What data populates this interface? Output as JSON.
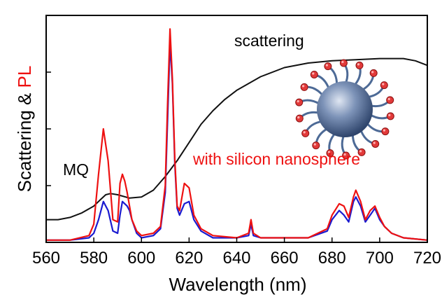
{
  "chart_data": {
    "type": "line",
    "xlabel": "Wavelength (nm)",
    "ylabel_parts": [
      "Scattering & ",
      "PL"
    ],
    "xlim": [
      560,
      720
    ],
    "ylim": [
      0,
      1
    ],
    "x_ticks": [
      560,
      580,
      600,
      620,
      640,
      660,
      680,
      700,
      720
    ],
    "y_ticks": [
      0.25,
      0.5,
      0.75,
      1.0
    ],
    "grid": false,
    "colors": {
      "scattering": "#111111",
      "pl_with": "#ee1111",
      "pl_without": "#1a1ad0",
      "ylabel_pl": "#ee1111"
    },
    "annotations": {
      "scattering": "scattering",
      "mq": "MQ",
      "with": "with silicon nanosphere"
    },
    "series": [
      {
        "key": "scattering",
        "x": [
          560,
          565,
          570,
          575,
          580,
          583,
          585,
          587,
          590,
          595,
          600,
          605,
          610,
          615,
          620,
          625,
          630,
          635,
          640,
          650,
          660,
          670,
          680,
          690,
          700,
          710,
          715,
          720
        ],
        "values": [
          0.1,
          0.1,
          0.11,
          0.13,
          0.16,
          0.19,
          0.21,
          0.215,
          0.21,
          0.195,
          0.2,
          0.23,
          0.29,
          0.36,
          0.44,
          0.52,
          0.58,
          0.63,
          0.67,
          0.73,
          0.77,
          0.79,
          0.8,
          0.805,
          0.81,
          0.81,
          0.8,
          0.78
        ]
      },
      {
        "key": "pl_without",
        "x": [
          560,
          570,
          578,
          580,
          582,
          584,
          586,
          588,
          590,
          591,
          592,
          593,
          594,
          595,
          596,
          598,
          600,
          605,
          608,
          610,
          611,
          612,
          613,
          614,
          615,
          616,
          618,
          620,
          622,
          625,
          630,
          640,
          645,
          646,
          647,
          650,
          660,
          670,
          678,
          680,
          683,
          685,
          687,
          689,
          690,
          692,
          694,
          696,
          698,
          700,
          702,
          705,
          710,
          720
        ],
        "values": [
          0.01,
          0.01,
          0.02,
          0.04,
          0.1,
          0.18,
          0.14,
          0.05,
          0.04,
          0.12,
          0.18,
          0.17,
          0.16,
          0.14,
          0.1,
          0.04,
          0.02,
          0.03,
          0.06,
          0.22,
          0.55,
          0.88,
          0.7,
          0.35,
          0.15,
          0.12,
          0.17,
          0.18,
          0.1,
          0.05,
          0.02,
          0.02,
          0.03,
          0.08,
          0.03,
          0.02,
          0.02,
          0.02,
          0.05,
          0.1,
          0.14,
          0.12,
          0.09,
          0.18,
          0.2,
          0.16,
          0.09,
          0.12,
          0.15,
          0.1,
          0.07,
          0.04,
          0.02,
          0.01
        ]
      },
      {
        "key": "pl_with",
        "x": [
          560,
          570,
          578,
          580,
          582,
          584,
          586,
          588,
          590,
          591,
          592,
          593,
          594,
          595,
          596,
          598,
          600,
          605,
          608,
          610,
          611,
          612,
          613,
          614,
          615,
          616,
          618,
          620,
          622,
          625,
          630,
          640,
          645,
          646,
          647,
          650,
          660,
          670,
          678,
          680,
          683,
          685,
          687,
          689,
          690,
          692,
          694,
          696,
          698,
          700,
          702,
          705,
          710,
          720
        ],
        "values": [
          0.01,
          0.01,
          0.03,
          0.08,
          0.3,
          0.5,
          0.36,
          0.1,
          0.09,
          0.26,
          0.3,
          0.27,
          0.22,
          0.16,
          0.1,
          0.05,
          0.03,
          0.04,
          0.07,
          0.25,
          0.62,
          0.94,
          0.72,
          0.37,
          0.16,
          0.14,
          0.26,
          0.24,
          0.12,
          0.06,
          0.03,
          0.02,
          0.04,
          0.1,
          0.04,
          0.02,
          0.02,
          0.02,
          0.06,
          0.12,
          0.17,
          0.16,
          0.11,
          0.2,
          0.23,
          0.18,
          0.1,
          0.14,
          0.16,
          0.11,
          0.07,
          0.04,
          0.02,
          0.01
        ]
      }
    ]
  }
}
